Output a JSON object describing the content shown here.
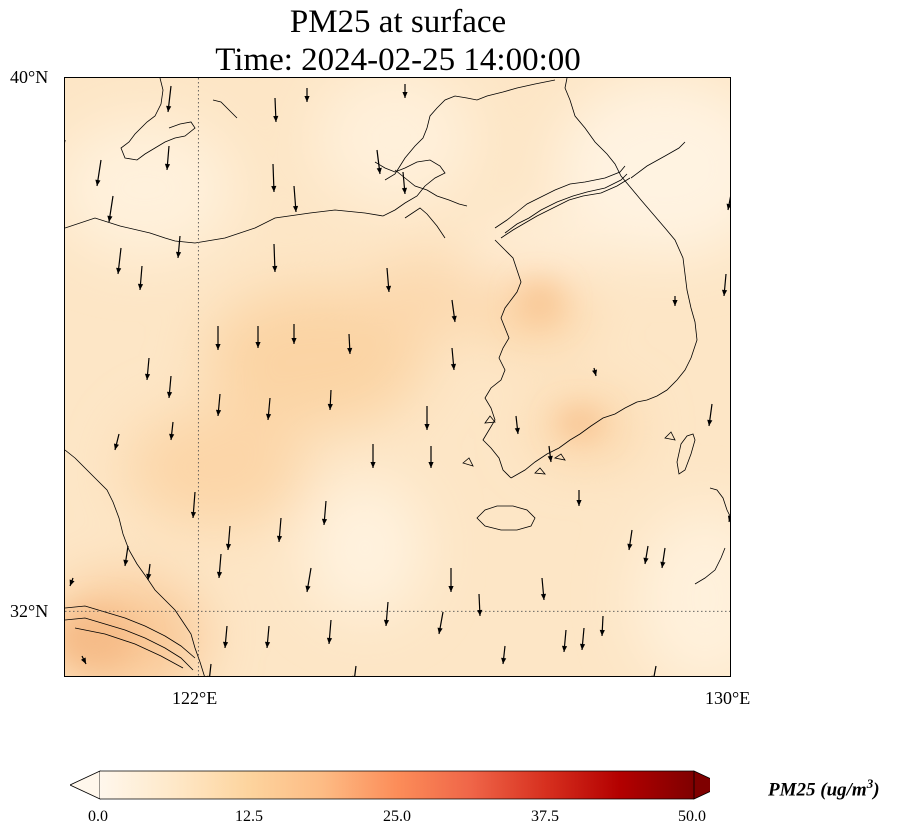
{
  "title": {
    "line1": "PM25 at surface",
    "line2": "Time: 2024-02-25 14:00:00"
  },
  "map": {
    "extent": {
      "lon_min": 120.0,
      "lon_max": 130.0,
      "lat_min": 31.0,
      "lat_max": 40.0
    },
    "lat_ticks": [
      {
        "value": 40,
        "label": "40°N"
      },
      {
        "value": 32,
        "label": "32°N"
      }
    ],
    "lon_ticks": [
      {
        "value": 122,
        "label": "122°E"
      },
      {
        "value": 130,
        "label": "130°E"
      }
    ],
    "gridlines": {
      "lon": [
        122
      ],
      "lat": [
        32
      ],
      "style": "dotted"
    },
    "field": "PM25",
    "approx_range_shown": [
      3,
      14
    ],
    "wind_vectors": "northerly (southward arrows) across domain"
  },
  "colorbar": {
    "min": 0.0,
    "max": 50.0,
    "ticks": [
      "0.0",
      "12.5",
      "25.0",
      "37.5",
      "50.0"
    ],
    "label": "PM25 (ug/m$^3$)",
    "label_main": "PM25 (ug/m",
    "label_sup": "3",
    "label_close": ")",
    "colormap": "OrRd",
    "extend": "both",
    "colors": [
      "#fff7ec",
      "#fee8c8",
      "#fdd49e",
      "#fdbb84",
      "#fc8d59",
      "#ef6548",
      "#d7301f",
      "#b30000",
      "#7f0000"
    ]
  }
}
